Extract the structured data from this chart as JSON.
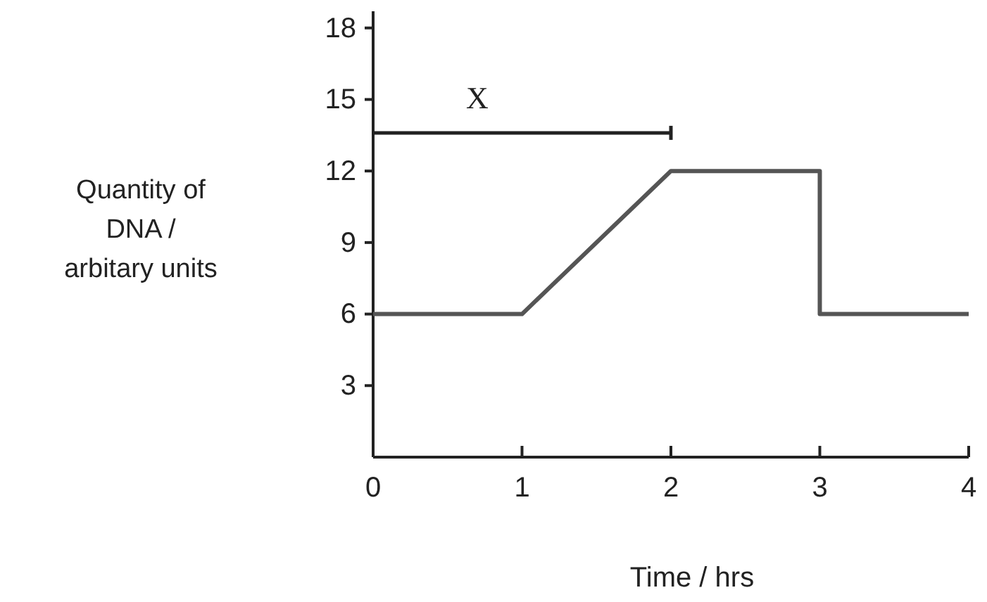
{
  "chart_data": {
    "type": "line",
    "xlabel": "Time / hrs",
    "ylabel": "Quantity of DNA / arbitary units",
    "x": [
      0,
      1,
      2,
      3,
      3,
      4
    ],
    "series": [
      {
        "color": "#555555",
        "values": [
          6,
          6,
          12,
          12,
          6,
          6
        ]
      },
      {
        "color": "#222222",
        "x": [
          0,
          2
        ],
        "values": [
          13.6,
          13.6
        ]
      }
    ],
    "annotations": [
      "X"
    ],
    "xlim": [
      0,
      4
    ],
    "xticks": [
      0,
      1,
      2,
      3,
      4
    ],
    "ylim": [
      0,
      18.7
    ],
    "yticks": [
      3,
      6,
      9,
      12,
      15,
      18
    ],
    "marker": "none",
    "line_style": "solid"
  }
}
